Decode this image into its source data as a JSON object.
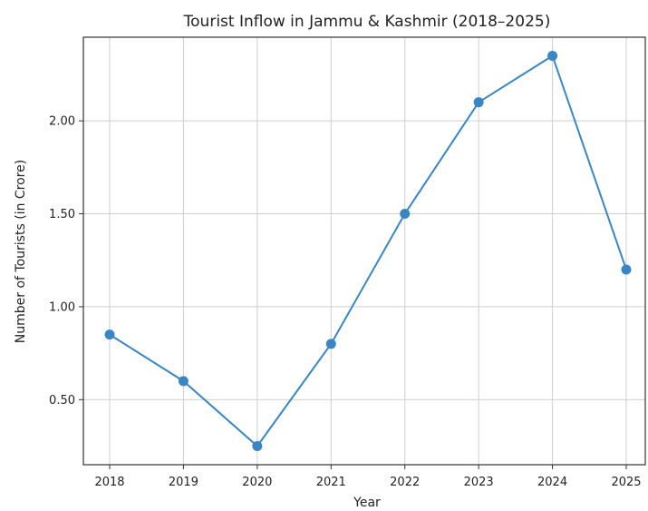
{
  "chart_data": {
    "type": "line",
    "title": "Tourist Inflow in Jammu & Kashmir (2018–2025)",
    "xlabel": "Year",
    "ylabel": "Number of Tourists (in Crore)",
    "x": [
      "2018",
      "2019",
      "2020",
      "2021",
      "2022",
      "2023",
      "2024",
      "2025"
    ],
    "series": [
      {
        "values": [
          0.85,
          0.6,
          0.25,
          0.8,
          1.5,
          2.1,
          2.35,
          1.2
        ]
      }
    ],
    "yticks": [
      0.5,
      1.0,
      1.5,
      2.0
    ],
    "ytick_labels": [
      "0.50",
      "1.00",
      "1.50",
      "2.00"
    ],
    "ylim": [
      0.15,
      2.45
    ],
    "grid": true,
    "marker": "circle",
    "line_color": "#3a86c2"
  }
}
